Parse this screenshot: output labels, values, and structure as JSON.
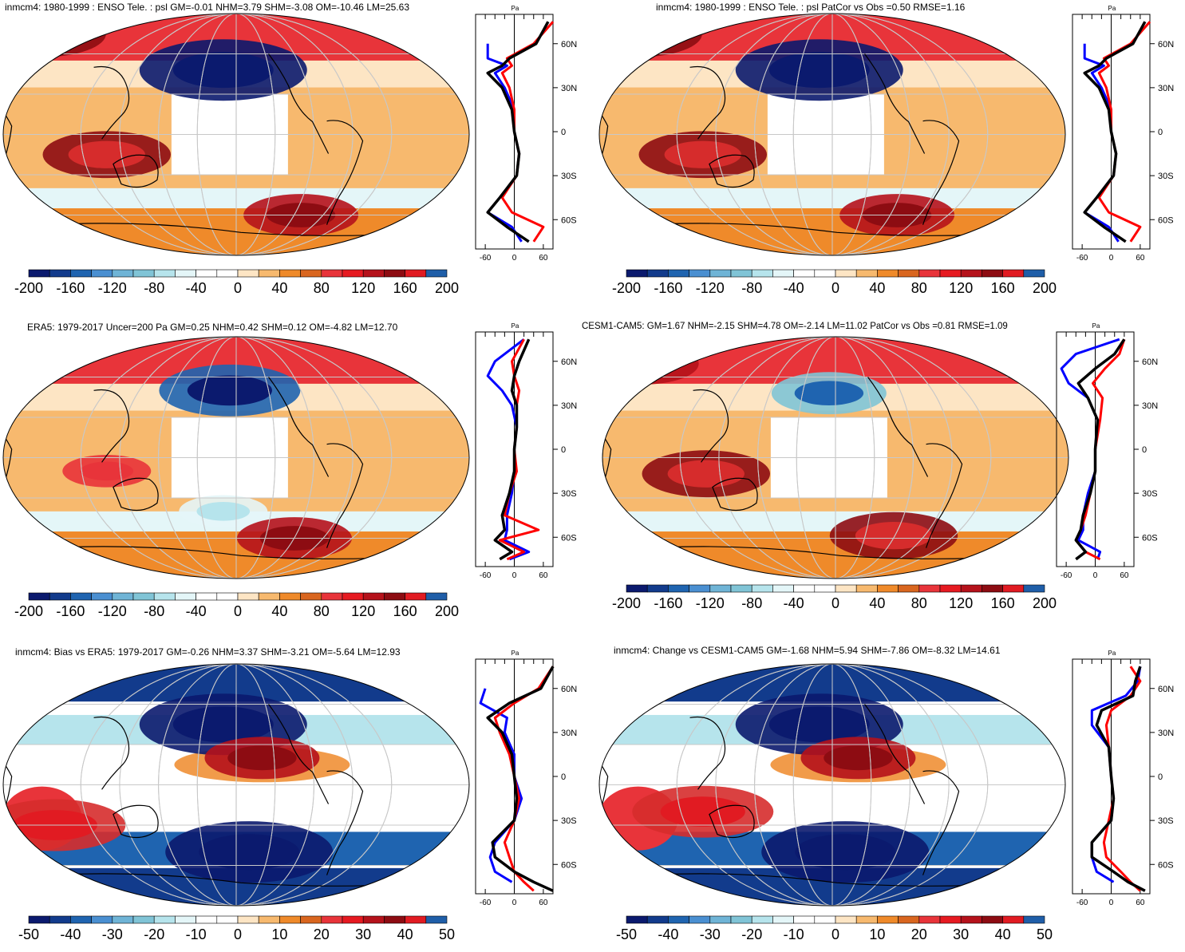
{
  "colors": {
    "palette": [
      "#0b1a6e",
      "#123b8c",
      "#1f64b0",
      "#4a8fd1",
      "#80c4d6",
      "#b6e4ec",
      "#e4f6f8",
      "#ffffff",
      "#fde5c4",
      "#f7b96e",
      "#ef8a2a",
      "#ea5f3b",
      "#e8343a",
      "#e61a21",
      "#b5121b",
      "#8d0c12",
      "#c8102e",
      "#e11b22",
      "#d62c2c",
      "#1f5ea8"
    ],
    "land_outline": "#000000",
    "grid": "#c8c8c8",
    "profile_model": "#ff0000",
    "profile_obs": "#000000",
    "profile_other": "#0000ff"
  },
  "profile_axis": {
    "unit": "Pa",
    "xticks": [
      "-60",
      "0",
      "60"
    ],
    "lat_ticks": [
      "60N",
      "30N",
      "0",
      "30S",
      "60S"
    ]
  },
  "panels": [
    {
      "title": "inmcm4: 1980-1999 : ENSO Tele. : psl GM=-0.01 NHM=3.79 SHM=-3.08 OM=-10.46 LM=25.63",
      "colorbar_labels": [
        "-200",
        "-160",
        "-120",
        "-80",
        "-40",
        "0",
        "40",
        "80",
        "120",
        "160",
        "200"
      ]
    },
    {
      "title": "inmcm4: 1980-1999 : ENSO Tele. : psl PatCor vs Obs =0.50 RMSE=1.16",
      "colorbar_labels": [
        "-200",
        "-160",
        "-120",
        "-80",
        "-40",
        "0",
        "40",
        "80",
        "120",
        "160",
        "200"
      ]
    },
    {
      "title": "ERA5: 1979-2017 Uncer=200 Pa GM=0.25 NHM=0.42 SHM=0.12 OM=-4.82 LM=12.70",
      "colorbar_labels": [
        "-200",
        "-160",
        "-120",
        "-80",
        "-40",
        "0",
        "40",
        "80",
        "120",
        "160",
        "200"
      ]
    },
    {
      "title": "CESM1-CAM5: GM=1.67 NHM=-2.15 SHM=4.78 OM=-2.14 LM=11.02 PatCor vs Obs =0.81 RMSE=1.09",
      "colorbar_labels": [
        "-200",
        "-160",
        "-120",
        "-80",
        "-40",
        "0",
        "40",
        "80",
        "120",
        "160",
        "200"
      ]
    },
    {
      "title": "inmcm4: Bias vs ERA5: 1979-2017 GM=-0.26 NHM=3.37 SHM=-3.21 OM=-5.64 LM=12.93",
      "colorbar_labels": [
        "-50",
        "-40",
        "-30",
        "-20",
        "-10",
        "0",
        "10",
        "20",
        "30",
        "40",
        "50"
      ]
    },
    {
      "title": "inmcm4: Change vs CESM1-CAM5 GM=-1.68 NHM=5.94 SHM=-7.86 OM=-8.32 LM=14.61",
      "colorbar_labels": [
        "-50",
        "-40",
        "-30",
        "-20",
        "-10",
        "0",
        "10",
        "20",
        "30",
        "40",
        "50"
      ]
    }
  ],
  "chart_data": [
    {
      "type": "heatmap",
      "title": "inmcm4: 1980-1999 : ENSO Tele. : psl GM=-0.01 NHM=3.79 SHM=-3.08 OM=-10.46 LM=25.63",
      "variable": "psl",
      "units": "Pa",
      "color_range": [
        -200,
        200
      ],
      "features": [
        {
          "lat": 48,
          "lon": 200,
          "value": -200
        },
        {
          "lat": -15,
          "lon": 110,
          "value": 140
        },
        {
          "lat": -60,
          "lon": 260,
          "value": 120
        },
        {
          "lat": 75,
          "lon": 60,
          "value": 140
        }
      ],
      "zonal_profile": {
        "lat": [
          75,
          60,
          50,
          45,
          40,
          30,
          15,
          0,
          -15,
          -30,
          -45,
          -55,
          -65,
          -75
        ],
        "model": [
          80,
          40,
          -15,
          -5,
          -25,
          -10,
          0,
          0,
          10,
          5,
          -25,
          -5,
          60,
          40
        ],
        "obs": [
          70,
          45,
          -10,
          -25,
          -55,
          -25,
          -5,
          0,
          10,
          5,
          -30,
          -55,
          -15,
          30
        ],
        "other": [
          null,
          -55,
          -55,
          -15,
          -40,
          -20,
          0,
          0,
          10,
          5,
          -30,
          -55,
          -5,
          15
        ]
      }
    },
    {
      "type": "heatmap",
      "title": "inmcm4: 1980-1999 : ENSO Tele. : psl PatCor vs Obs =0.50 RMSE=1.16",
      "variable": "psl",
      "units": "Pa",
      "color_range": [
        -200,
        200
      ],
      "features": [
        {
          "lat": 48,
          "lon": 200,
          "value": -200
        },
        {
          "lat": -15,
          "lon": 110,
          "value": 140
        },
        {
          "lat": -60,
          "lon": 260,
          "value": 120
        },
        {
          "lat": 75,
          "lon": 60,
          "value": 140
        }
      ],
      "zonal_profile": {
        "lat": [
          75,
          60,
          50,
          45,
          40,
          30,
          15,
          0,
          -15,
          -30,
          -45,
          -55,
          -65,
          -75
        ],
        "model": [
          80,
          40,
          -15,
          -5,
          -25,
          -10,
          0,
          0,
          10,
          5,
          -25,
          -5,
          60,
          40
        ],
        "obs": [
          70,
          45,
          -10,
          -25,
          -55,
          -25,
          -5,
          0,
          10,
          5,
          -30,
          -55,
          -15,
          30
        ],
        "other": [
          null,
          -55,
          -55,
          -15,
          -40,
          -20,
          0,
          0,
          10,
          5,
          -30,
          -55,
          -5,
          15
        ]
      }
    },
    {
      "type": "heatmap",
      "title": "ERA5: 1979-2017 Uncer=200 Pa GM=0.25 NHM=0.42 SHM=0.12 OM=-4.82 LM=12.70",
      "variable": "psl",
      "units": "Pa",
      "color_range": [
        -200,
        200
      ],
      "features": [
        {
          "lat": 50,
          "lon": 205,
          "value": -160
        },
        {
          "lat": -10,
          "lon": 110,
          "value": 80
        },
        {
          "lat": -60,
          "lon": 255,
          "value": 120
        },
        {
          "lat": -40,
          "lon": 200,
          "value": -80
        }
      ],
      "zonal_profile": {
        "lat": [
          75,
          60,
          50,
          40,
          30,
          15,
          0,
          -15,
          -30,
          -45,
          -55,
          -62,
          -70,
          -75
        ],
        "model": [
          20,
          -5,
          0,
          10,
          5,
          5,
          0,
          5,
          -10,
          -20,
          50,
          -30,
          20,
          -15
        ],
        "obs": [
          30,
          10,
          0,
          -5,
          5,
          5,
          0,
          0,
          -10,
          -25,
          -20,
          -40,
          -5,
          -30
        ],
        "other": [
          20,
          -40,
          -55,
          -25,
          -5,
          5,
          0,
          0,
          -5,
          -15,
          -15,
          -20,
          30,
          -10
        ]
      }
    },
    {
      "type": "heatmap",
      "title": "CESM1-CAM5: GM=1.67 NHM=-2.15 SHM=4.78 OM=-2.14 LM=11.02 PatCor vs Obs =0.81 RMSE=1.09",
      "variable": "psl",
      "units": "Pa",
      "color_range": [
        -200,
        200
      ],
      "features": [
        {
          "lat": 48,
          "lon": 205,
          "value": -120
        },
        {
          "lat": -12,
          "lon": 110,
          "value": 140
        },
        {
          "lat": -58,
          "lon": 255,
          "value": 140
        },
        {
          "lat": 70,
          "lon": 60,
          "value": 120
        }
      ],
      "zonal_profile": {
        "lat": [
          75,
          65,
          55,
          45,
          35,
          20,
          0,
          -15,
          -30,
          -45,
          -55,
          -62,
          -70,
          -75
        ],
        "model": [
          60,
          50,
          20,
          -5,
          15,
          10,
          0,
          0,
          -10,
          -20,
          -30,
          -40,
          -20,
          10
        ],
        "obs": [
          60,
          40,
          0,
          -35,
          -15,
          5,
          0,
          0,
          -10,
          -25,
          -30,
          -40,
          -20,
          -40
        ],
        "other": [
          50,
          -40,
          -70,
          -55,
          -15,
          5,
          0,
          0,
          -15,
          -25,
          -25,
          -35,
          10,
          5
        ]
      }
    },
    {
      "type": "heatmap",
      "title": "inmcm4: Bias vs ERA5: 1979-2017 GM=-0.26 NHM=3.37 SHM=-3.21 OM=-5.64 LM=12.93",
      "variable": "psl bias",
      "units": "Pa",
      "color_range": [
        -50,
        50
      ],
      "features": [
        {
          "lat": 45,
          "lon": 200,
          "value": -50
        },
        {
          "lat": -50,
          "lon": 220,
          "value": -50
        },
        {
          "lat": 20,
          "lon": 230,
          "value": 30
        },
        {
          "lat": -30,
          "lon": 70,
          "value": 40
        }
      ],
      "zonal_profile": {
        "lat": [
          75,
          60,
          50,
          40,
          30,
          15,
          0,
          -15,
          -30,
          -45,
          -55,
          -65,
          -72,
          -78
        ],
        "model": [
          80,
          50,
          0,
          -40,
          -30,
          -10,
          0,
          10,
          0,
          -20,
          -10,
          0,
          20,
          40
        ],
        "obs": [
          80,
          55,
          -10,
          -55,
          -25,
          -5,
          0,
          5,
          0,
          -45,
          -40,
          0,
          40,
          80
        ],
        "other": [
          null,
          -60,
          -70,
          -15,
          -20,
          0,
          0,
          15,
          0,
          -40,
          -50,
          -40,
          -5,
          null
        ]
      }
    },
    {
      "type": "heatmap",
      "title": "inmcm4: Change vs CESM1-CAM5 GM=-1.68 NHM=5.94 SHM=-7.86 OM=-8.32 LM=14.61",
      "variable": "psl change",
      "units": "Pa",
      "color_range": [
        -50,
        50
      ],
      "features": [
        {
          "lat": 45,
          "lon": 200,
          "value": -50
        },
        {
          "lat": -50,
          "lon": 220,
          "value": -50
        },
        {
          "lat": 20,
          "lon": 230,
          "value": 30
        },
        {
          "lat": -20,
          "lon": 110,
          "value": 40
        }
      ],
      "zonal_profile": {
        "lat": [
          75,
          65,
          55,
          45,
          35,
          20,
          0,
          -15,
          -30,
          -45,
          -55,
          -65,
          -72,
          -78
        ],
        "model": [
          40,
          60,
          40,
          0,
          -10,
          -5,
          0,
          5,
          -5,
          -15,
          -10,
          20,
          40,
          60
        ],
        "obs": [
          60,
          50,
          45,
          -20,
          -30,
          -5,
          0,
          5,
          0,
          -40,
          -40,
          5,
          35,
          70
        ],
        "other": [
          60,
          55,
          30,
          -40,
          -40,
          -5,
          0,
          5,
          0,
          -40,
          -40,
          -30,
          5,
          null
        ]
      }
    }
  ]
}
